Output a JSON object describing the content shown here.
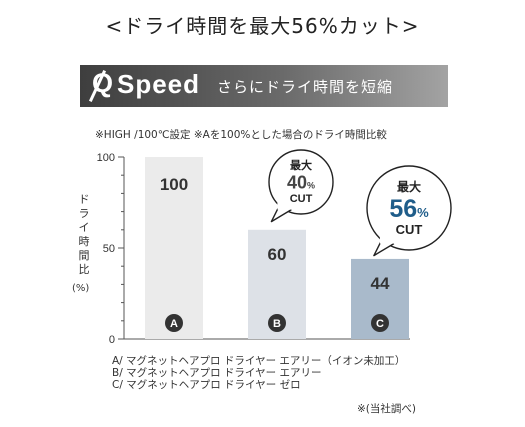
{
  "title": "<ドライ時間を最大56%カット>",
  "banner": {
    "brand_q": "Q",
    "brand_speed": "Speed",
    "subtitle": "さらにドライ時間を短縮"
  },
  "note": "※HIGH /100℃設定 ※Aを100%とした場合のドライ時間比較",
  "ylabel_chars": [
    "ド",
    "ラ",
    "イ",
    "時",
    "間",
    "比"
  ],
  "yunit": "(%)",
  "chart_data": {
    "type": "bar",
    "categories": [
      "A",
      "B",
      "C"
    ],
    "values": [
      100,
      60,
      44
    ],
    "value_labels": [
      "100",
      "60",
      "44"
    ],
    "ylabel": "ドライ時間比 (%)",
    "ylim": [
      0,
      100
    ],
    "yticks": [
      0,
      50,
      100
    ],
    "bar_colors": [
      "#ebebeb",
      "#dde1e7",
      "#a9bacb"
    ],
    "marker_color": "#333333",
    "callouts": [
      {
        "category": "B",
        "top": "最大",
        "value": "40",
        "unit": "%",
        "bottom": "CUT",
        "value_color": "#444444"
      },
      {
        "category": "C",
        "top": "最大",
        "value": "56",
        "unit": "%",
        "bottom": "CUT",
        "value_color": "#1f5d8a"
      }
    ]
  },
  "legend": [
    "A/ マグネットヘアプロ ドライヤー エアリー（イオン未加工）",
    "B/ マグネットヘアプロ ドライヤー エアリー",
    "C/ マグネットヘアプロ ドライヤー ゼロ"
  ],
  "source": "※(当社調べ)"
}
